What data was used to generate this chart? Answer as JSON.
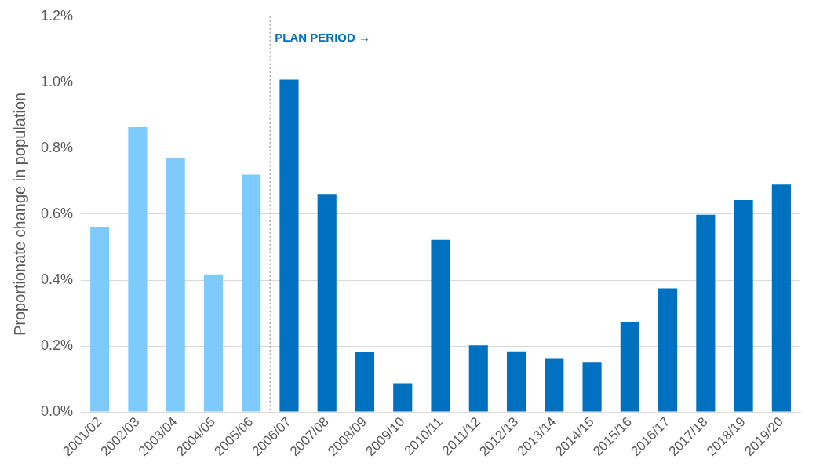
{
  "chart_data": {
    "type": "bar",
    "ylabel": "Proportionate change in population",
    "categories": [
      "2001/02",
      "2002/03",
      "2003/04",
      "2004/05",
      "2005/06",
      "2006/07",
      "2007/08",
      "2008/09",
      "2009/10",
      "2010/11",
      "2011/12",
      "2012/13",
      "2013/14",
      "2014/15",
      "2015/16",
      "2016/17",
      "2017/18",
      "2018/19",
      "2019/20"
    ],
    "values": [
      0.562,
      0.864,
      0.769,
      0.417,
      0.72,
      1.008,
      0.661,
      0.181,
      0.087,
      0.522,
      0.202,
      0.184,
      0.163,
      0.152,
      0.273,
      0.375,
      0.598,
      0.643,
      0.69
    ],
    "colors": [
      "#7fcafd",
      "#7fcafd",
      "#7fcafd",
      "#7fcafd",
      "#7fcafd",
      "#0070c0",
      "#0070c0",
      "#0070c0",
      "#0070c0",
      "#0070c0",
      "#0070c0",
      "#0070c0",
      "#0070c0",
      "#0070c0",
      "#0070c0",
      "#0070c0",
      "#0070c0",
      "#0070c0",
      "#0070c0"
    ],
    "ylim": [
      0,
      1.2
    ],
    "yticks": [
      {
        "value": 0,
        "label": "0.0%"
      },
      {
        "value": 0.2,
        "label": "0.2%"
      },
      {
        "value": 0.4,
        "label": "0.4%"
      },
      {
        "value": 0.6,
        "label": "0.6%"
      },
      {
        "value": 0.8,
        "label": "0.8%"
      },
      {
        "value": 1.0,
        "label": "1.0%"
      },
      {
        "value": 1.2,
        "label": "1.2%"
      }
    ],
    "grid": "y",
    "legend": false,
    "ref_lines": [
      {
        "axis": "x",
        "value": "2006/07",
        "label": "PLAN PERIOD →",
        "color": "#a6a6a6",
        "line_style": "dotted"
      }
    ]
  }
}
